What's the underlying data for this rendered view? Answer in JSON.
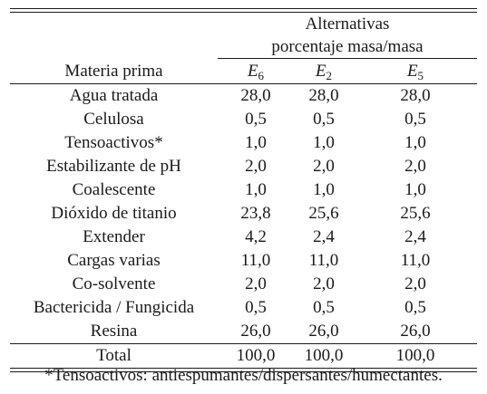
{
  "table": {
    "group_header_line1": "Alternativas",
    "group_header_line2": "porcentaje masa/masa",
    "row_header": "Materia prima",
    "columns": [
      {
        "letter": "E",
        "sub": "6"
      },
      {
        "letter": "E",
        "sub": "2"
      },
      {
        "letter": "E",
        "sub": "5"
      }
    ],
    "rows": [
      {
        "name": "Agua tratada",
        "values": [
          "28,0",
          "28,0",
          "28,0"
        ]
      },
      {
        "name": "Celulosa",
        "values": [
          "0,5",
          "0,5",
          "0,5"
        ]
      },
      {
        "name": "Tensoactivos*",
        "values": [
          "1,0",
          "1,0",
          "1,0"
        ]
      },
      {
        "name": "Estabilizante de pH",
        "values": [
          "2,0",
          "2,0",
          "2,0"
        ]
      },
      {
        "name": "Coalescente",
        "values": [
          "1,0",
          "1,0",
          "1,0"
        ]
      },
      {
        "name": "Dióxido de titanio",
        "values": [
          "23,8",
          "25,6",
          "25,6"
        ]
      },
      {
        "name": "Extender",
        "values": [
          "4,2",
          "2,4",
          "2,4"
        ]
      },
      {
        "name": "Cargas varias",
        "values": [
          "11,0",
          "11,0",
          "11,0"
        ]
      },
      {
        "name": "Co-solvente",
        "values": [
          "2,0",
          "2,0",
          "2,0"
        ]
      },
      {
        "name": "Bactericida / Fungicida",
        "values": [
          "0,5",
          "0,5",
          "0,5"
        ]
      },
      {
        "name": "Resina",
        "values": [
          "26,0",
          "26,0",
          "26,0"
        ]
      }
    ],
    "total": {
      "name": "Total",
      "values": [
        "100,0",
        "100,0",
        "100,0"
      ]
    }
  },
  "footnote": "*Tensoactivos: antiespumantes/dispersantes/humectantes."
}
